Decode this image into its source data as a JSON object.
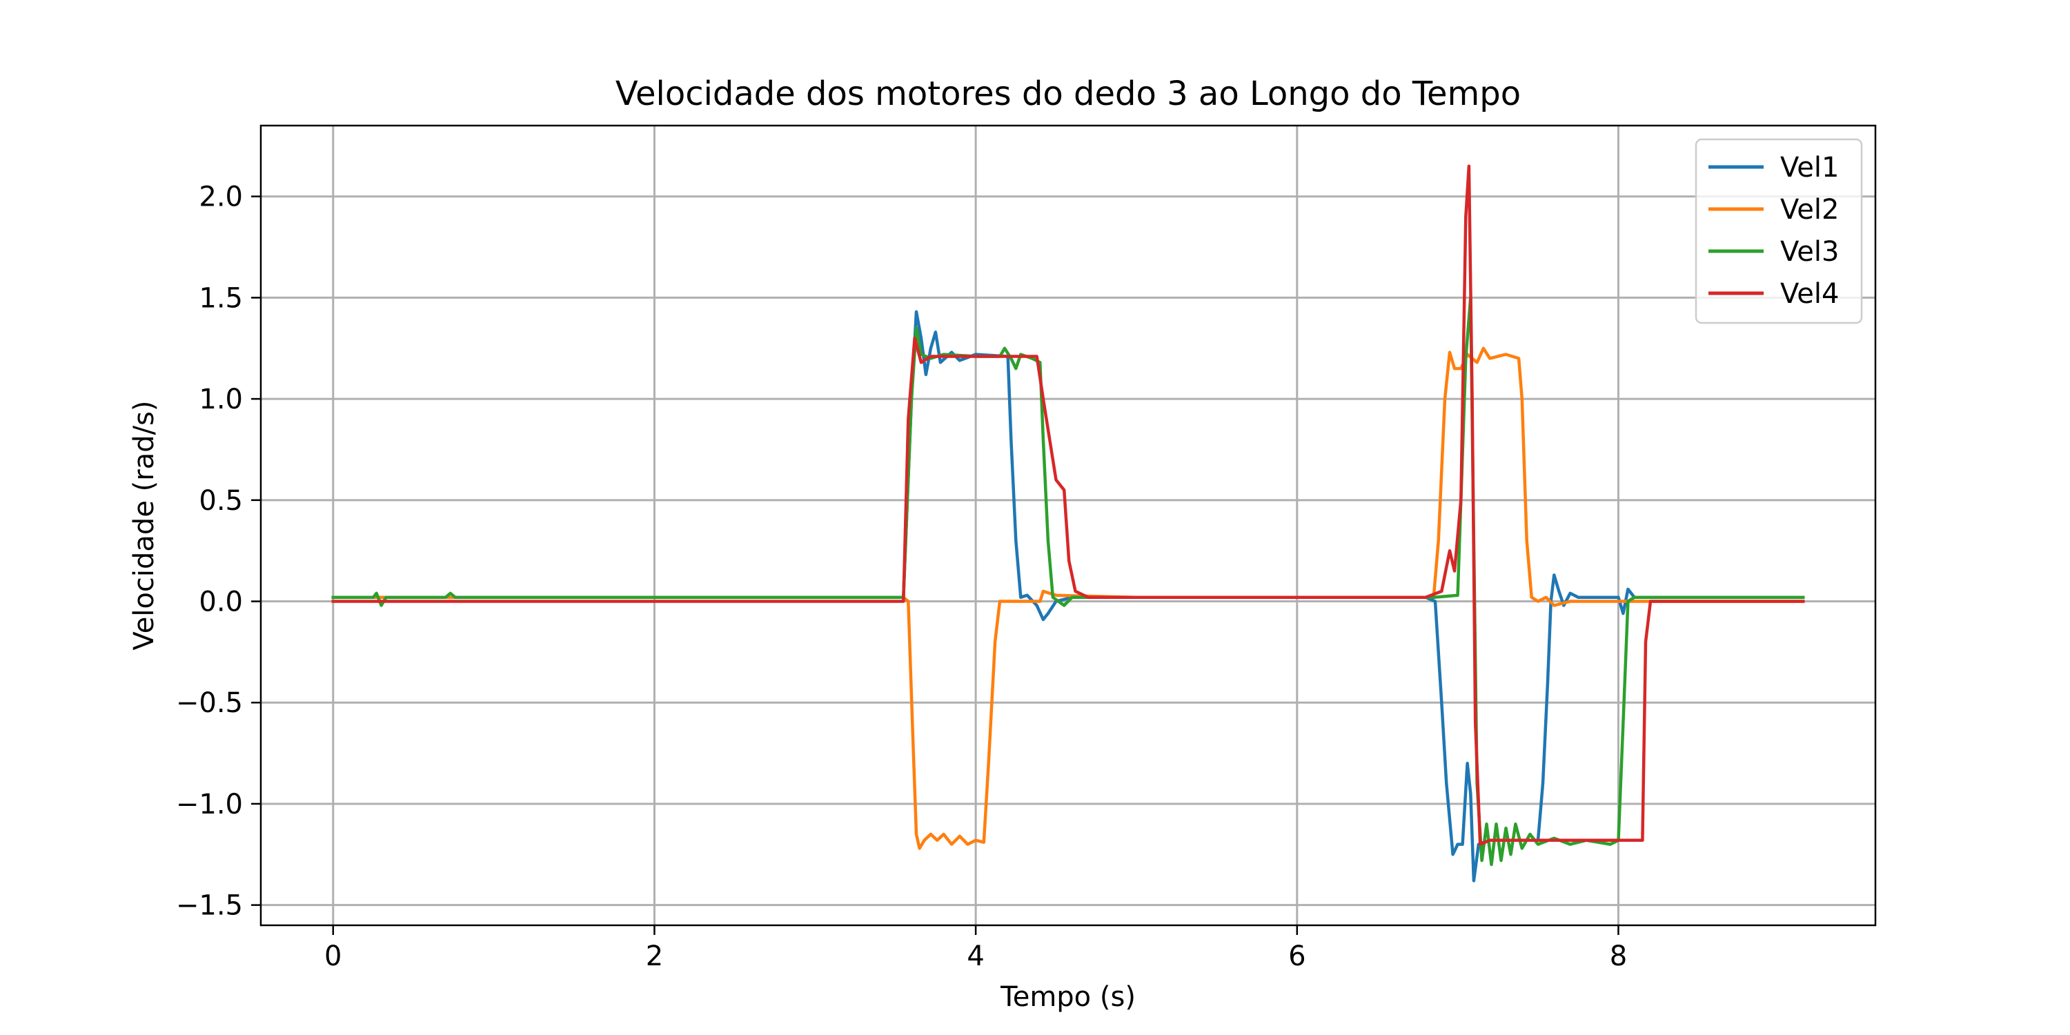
{
  "chart_data": {
    "type": "line",
    "title": "Velocidade dos motores do dedo 3 ao Longo do Tempo",
    "xlabel": "Tempo (s)",
    "ylabel": "Velocidade (rad/s)",
    "xlim": [
      -0.45,
      9.6
    ],
    "ylim": [
      -1.6,
      2.35
    ],
    "xticks": [
      0,
      2,
      4,
      6,
      8
    ],
    "yticks": [
      -1.5,
      -1.0,
      -0.5,
      0.0,
      0.5,
      1.0,
      1.5,
      2.0
    ],
    "xtick_labels": [
      "0",
      "2",
      "4",
      "6",
      "8"
    ],
    "ytick_labels": [
      "−1.5",
      "−1.0",
      "−0.5",
      "0.0",
      "0.5",
      "1.0",
      "1.5",
      "2.0"
    ],
    "grid": true,
    "legend_position": "top-right",
    "series": [
      {
        "name": "Vel1",
        "color": "#1f77b4",
        "points": [
          [
            0,
            0.02
          ],
          [
            3.55,
            0.02
          ],
          [
            3.6,
            1.0
          ],
          [
            3.63,
            1.43
          ],
          [
            3.66,
            1.3
          ],
          [
            3.69,
            1.12
          ],
          [
            3.72,
            1.25
          ],
          [
            3.75,
            1.33
          ],
          [
            3.78,
            1.18
          ],
          [
            3.85,
            1.23
          ],
          [
            3.9,
            1.19
          ],
          [
            4.0,
            1.22
          ],
          [
            4.2,
            1.21
          ],
          [
            4.22,
            0.8
          ],
          [
            4.25,
            0.3
          ],
          [
            4.28,
            0.02
          ],
          [
            4.32,
            0.03
          ],
          [
            4.38,
            -0.02
          ],
          [
            4.42,
            -0.09
          ],
          [
            4.45,
            -0.06
          ],
          [
            4.5,
            0.0
          ],
          [
            4.6,
            0.02
          ],
          [
            5.0,
            0.02
          ],
          [
            6.0,
            0.02
          ],
          [
            6.8,
            0.02
          ],
          [
            6.86,
            0.0
          ],
          [
            6.9,
            -0.5
          ],
          [
            6.93,
            -0.9
          ],
          [
            6.97,
            -1.25
          ],
          [
            7.0,
            -1.2
          ],
          [
            7.03,
            -1.2
          ],
          [
            7.06,
            -0.8
          ],
          [
            7.08,
            -0.95
          ],
          [
            7.1,
            -1.38
          ],
          [
            7.13,
            -1.2
          ],
          [
            7.2,
            -1.18
          ],
          [
            7.5,
            -1.18
          ],
          [
            7.53,
            -0.9
          ],
          [
            7.56,
            -0.4
          ],
          [
            7.58,
            0.0
          ],
          [
            7.6,
            0.13
          ],
          [
            7.63,
            0.05
          ],
          [
            7.66,
            -0.02
          ],
          [
            7.7,
            0.04
          ],
          [
            7.75,
            0.02
          ],
          [
            8.0,
            0.02
          ],
          [
            8.03,
            -0.06
          ],
          [
            8.06,
            0.06
          ],
          [
            8.1,
            0.02
          ],
          [
            8.5,
            0.02
          ],
          [
            9.15,
            0.02
          ]
        ]
      },
      {
        "name": "Vel2",
        "color": "#ff7f0e",
        "points": [
          [
            0,
            0.02
          ],
          [
            3.55,
            0.02
          ],
          [
            3.58,
            0.0
          ],
          [
            3.61,
            -0.7
          ],
          [
            3.63,
            -1.15
          ],
          [
            3.65,
            -1.22
          ],
          [
            3.68,
            -1.18
          ],
          [
            3.72,
            -1.15
          ],
          [
            3.76,
            -1.18
          ],
          [
            3.8,
            -1.15
          ],
          [
            3.85,
            -1.2
          ],
          [
            3.9,
            -1.16
          ],
          [
            3.95,
            -1.2
          ],
          [
            4.0,
            -1.18
          ],
          [
            4.05,
            -1.19
          ],
          [
            4.08,
            -0.8
          ],
          [
            4.12,
            -0.2
          ],
          [
            4.15,
            0.0
          ],
          [
            4.3,
            0.0
          ],
          [
            4.4,
            0.0
          ],
          [
            4.42,
            0.05
          ],
          [
            4.5,
            0.03
          ],
          [
            5.0,
            0.02
          ],
          [
            6.0,
            0.02
          ],
          [
            6.85,
            0.02
          ],
          [
            6.88,
            0.3
          ],
          [
            6.92,
            1.0
          ],
          [
            6.95,
            1.23
          ],
          [
            6.98,
            1.15
          ],
          [
            7.02,
            1.15
          ],
          [
            7.06,
            1.22
          ],
          [
            7.12,
            1.18
          ],
          [
            7.16,
            1.25
          ],
          [
            7.2,
            1.2
          ],
          [
            7.3,
            1.22
          ],
          [
            7.38,
            1.2
          ],
          [
            7.4,
            1.0
          ],
          [
            7.43,
            0.3
          ],
          [
            7.46,
            0.02
          ],
          [
            7.5,
            0.0
          ],
          [
            7.55,
            0.02
          ],
          [
            7.6,
            -0.02
          ],
          [
            7.7,
            0.0
          ],
          [
            8.0,
            0.0
          ],
          [
            9.15,
            0.0
          ]
        ]
      },
      {
        "name": "Vel3",
        "color": "#2ca02c",
        "points": [
          [
            0,
            0.02
          ],
          [
            0.25,
            0.02
          ],
          [
            0.27,
            0.04
          ],
          [
            0.3,
            -0.02
          ],
          [
            0.33,
            0.02
          ],
          [
            0.7,
            0.02
          ],
          [
            0.73,
            0.04
          ],
          [
            0.76,
            0.02
          ],
          [
            3.55,
            0.02
          ],
          [
            3.6,
            1.0
          ],
          [
            3.63,
            1.35
          ],
          [
            3.66,
            1.22
          ],
          [
            3.72,
            1.2
          ],
          [
            3.8,
            1.22
          ],
          [
            4.0,
            1.21
          ],
          [
            4.15,
            1.21
          ],
          [
            4.18,
            1.25
          ],
          [
            4.22,
            1.2
          ],
          [
            4.25,
            1.15
          ],
          [
            4.28,
            1.22
          ],
          [
            4.35,
            1.2
          ],
          [
            4.4,
            1.18
          ],
          [
            4.42,
            0.8
          ],
          [
            4.45,
            0.3
          ],
          [
            4.48,
            0.02
          ],
          [
            4.55,
            -0.02
          ],
          [
            4.6,
            0.02
          ],
          [
            5.0,
            0.02
          ],
          [
            6.0,
            0.02
          ],
          [
            6.85,
            0.02
          ],
          [
            7.0,
            0.03
          ],
          [
            7.05,
            1.2
          ],
          [
            7.08,
            1.5
          ],
          [
            7.1,
            0.3
          ],
          [
            7.12,
            -0.9
          ],
          [
            7.15,
            -1.28
          ],
          [
            7.18,
            -1.1
          ],
          [
            7.21,
            -1.3
          ],
          [
            7.24,
            -1.1
          ],
          [
            7.27,
            -1.28
          ],
          [
            7.3,
            -1.12
          ],
          [
            7.33,
            -1.25
          ],
          [
            7.36,
            -1.1
          ],
          [
            7.4,
            -1.22
          ],
          [
            7.45,
            -1.15
          ],
          [
            7.5,
            -1.2
          ],
          [
            7.6,
            -1.17
          ],
          [
            7.7,
            -1.2
          ],
          [
            7.8,
            -1.18
          ],
          [
            7.95,
            -1.2
          ],
          [
            8.0,
            -1.18
          ],
          [
            8.03,
            -0.6
          ],
          [
            8.06,
            0.0
          ],
          [
            8.1,
            0.02
          ],
          [
            9.15,
            0.02
          ]
        ]
      },
      {
        "name": "Vel4",
        "color": "#d62728",
        "points": [
          [
            0,
            0.0
          ],
          [
            3.55,
            0.0
          ],
          [
            3.58,
            0.9
          ],
          [
            3.62,
            1.3
          ],
          [
            3.66,
            1.18
          ],
          [
            3.72,
            1.21
          ],
          [
            4.0,
            1.21
          ],
          [
            4.38,
            1.21
          ],
          [
            4.42,
            1.0
          ],
          [
            4.46,
            0.8
          ],
          [
            4.5,
            0.6
          ],
          [
            4.55,
            0.55
          ],
          [
            4.58,
            0.2
          ],
          [
            4.62,
            0.05
          ],
          [
            4.7,
            0.02
          ],
          [
            5.0,
            0.02
          ],
          [
            6.0,
            0.02
          ],
          [
            6.8,
            0.02
          ],
          [
            6.9,
            0.05
          ],
          [
            6.95,
            0.25
          ],
          [
            6.98,
            0.15
          ],
          [
            7.02,
            0.5
          ],
          [
            7.05,
            1.9
          ],
          [
            7.07,
            2.15
          ],
          [
            7.09,
            1.0
          ],
          [
            7.11,
            -0.6
          ],
          [
            7.14,
            -1.2
          ],
          [
            7.2,
            -1.18
          ],
          [
            7.3,
            -1.18
          ],
          [
            7.5,
            -1.18
          ],
          [
            7.7,
            -1.18
          ],
          [
            8.0,
            -1.18
          ],
          [
            8.15,
            -1.18
          ],
          [
            8.17,
            -0.2
          ],
          [
            8.2,
            0.0
          ],
          [
            9.15,
            0.0
          ]
        ]
      }
    ]
  }
}
